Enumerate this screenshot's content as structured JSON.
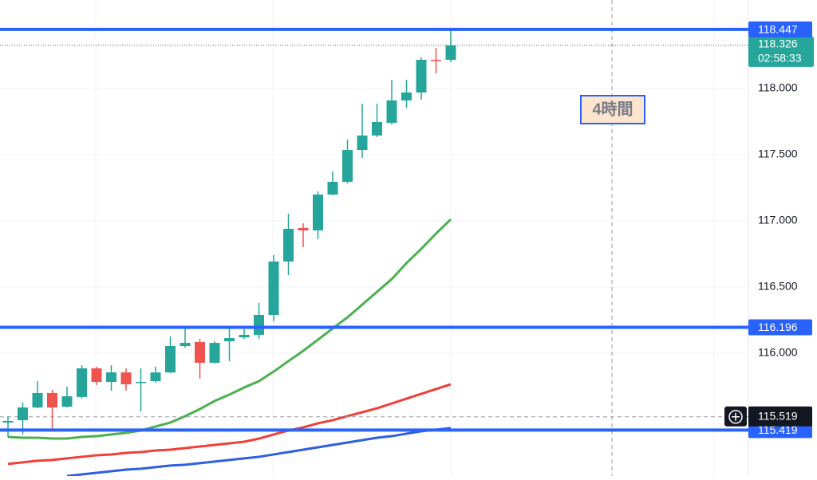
{
  "chart_data": {
    "type": "candlestick",
    "ylim": [
      115.072,
      118.669
    ],
    "yticks": [
      {
        "value": 118,
        "label": "118.000"
      },
      {
        "value": 117.5,
        "label": "117.500"
      },
      {
        "value": 117,
        "label": "117.000"
      },
      {
        "value": 116.5,
        "label": "116.500"
      },
      {
        "value": 116,
        "label": "116.000"
      }
    ],
    "grid": true,
    "up_color": "#26a69a",
    "down_color": "#ef5350",
    "open": [
      115.476,
      115.494,
      115.59,
      115.699,
      115.596,
      115.669,
      115.886,
      115.783,
      115.855,
      115.777,
      115.789,
      115.855,
      116.054,
      116.084,
      115.928,
      116.09,
      116.12,
      116.139,
      116.289,
      116.693,
      116.946,
      116.928,
      117.199,
      117.295,
      117.536,
      117.645,
      117.741,
      117.91,
      117.97,
      118.217,
      118.217
    ],
    "high": [
      115.524,
      115.627,
      115.789,
      115.723,
      115.747,
      115.91,
      115.898,
      115.91,
      115.886,
      115.886,
      115.898,
      116.127,
      116.187,
      116.108,
      116.09,
      116.187,
      116.187,
      116.38,
      116.741,
      117.054,
      116.982,
      117.223,
      117.373,
      117.614,
      117.886,
      117.886,
      118.066,
      118.066,
      118.235,
      118.307,
      118.447
    ],
    "low": [
      115.367,
      115.386,
      115.584,
      115.428,
      115.59,
      115.657,
      115.759,
      115.717,
      115.717,
      115.56,
      115.777,
      115.849,
      116.042,
      115.807,
      115.922,
      115.94,
      116.108,
      116.108,
      116.241,
      116.59,
      116.801,
      116.861,
      117.193,
      117.283,
      117.476,
      117.633,
      117.729,
      117.855,
      117.916,
      118.114,
      118.199
    ],
    "close": [
      115.488,
      115.59,
      115.699,
      115.59,
      115.675,
      115.886,
      115.783,
      115.855,
      115.765,
      115.783,
      115.855,
      116.054,
      116.078,
      115.928,
      116.078,
      116.114,
      116.139,
      116.289,
      116.693,
      116.94,
      116.928,
      117.199,
      117.295,
      117.536,
      117.645,
      117.747,
      117.91,
      117.97,
      118.217,
      118.211,
      118.326
    ],
    "moving_averages": [
      {
        "color": "#4caf50",
        "values": [
          115.367,
          115.361,
          115.361,
          115.355,
          115.355,
          115.367,
          115.373,
          115.386,
          115.398,
          115.416,
          115.446,
          115.476,
          115.524,
          115.578,
          115.639,
          115.687,
          115.741,
          115.789,
          115.861,
          115.94,
          116.018,
          116.102,
          116.187,
          116.271,
          116.367,
          116.464,
          116.56,
          116.681,
          116.789,
          116.904,
          117.012
        ]
      },
      {
        "color": "#f23f3a",
        "values": [
          115.163,
          115.175,
          115.187,
          115.193,
          115.205,
          115.217,
          115.229,
          115.235,
          115.247,
          115.253,
          115.265,
          115.271,
          115.283,
          115.295,
          115.307,
          115.319,
          115.331,
          115.355,
          115.386,
          115.416,
          115.44,
          115.47,
          115.494,
          115.524,
          115.554,
          115.584,
          115.62,
          115.657,
          115.693,
          115.729,
          115.765
        ]
      },
      {
        "color": "#2f5fe0",
        "values": [
          null,
          null,
          null,
          null,
          115.072,
          115.084,
          115.096,
          115.108,
          115.12,
          115.127,
          115.139,
          115.151,
          115.157,
          115.169,
          115.181,
          115.193,
          115.205,
          115.217,
          115.235,
          115.253,
          115.271,
          115.289,
          115.307,
          115.325,
          115.343,
          115.361,
          115.373,
          115.392,
          115.41,
          115.422,
          115.434
        ]
      }
    ],
    "price_lines": [
      {
        "value": 118.447,
        "color": "#2962ff"
      },
      {
        "value": 116.196,
        "color": "#2962ff"
      },
      {
        "value": 115.419,
        "color": "#2962ff"
      }
    ],
    "last_price": {
      "value": 118.326,
      "countdown": "02:58:33",
      "color": "#26a69a"
    },
    "crosshair": {
      "value": 115.519
    },
    "annotation": "4時間"
  }
}
